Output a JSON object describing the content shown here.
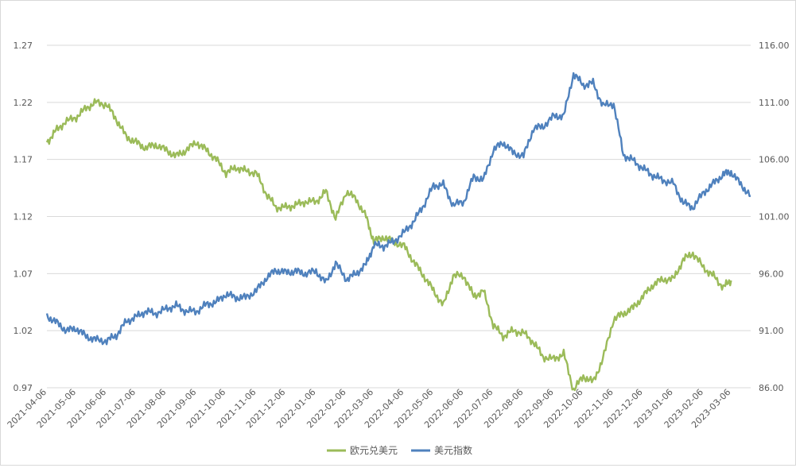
{
  "chart_data": {
    "type": "line",
    "title": "",
    "x_tick_labels": [
      "2021-04-06",
      "2021-05-06",
      "2021-06-06",
      "2021-07-06",
      "2021-08-06",
      "2021-09-06",
      "2021-10-06",
      "2021-11-06",
      "2021-12-06",
      "2022-01-06",
      "2022-02-06",
      "2022-03-06",
      "2022-04-06",
      "2022-05-06",
      "2022-06-06",
      "2022-07-06",
      "2022-08-06",
      "2022-09-06",
      "2022-10-06",
      "2022-11-06",
      "2022-12-06",
      "2023-01-06",
      "2023-02-06",
      "2023-03-06"
    ],
    "left_axis": {
      "min": 0.97,
      "max": 1.27,
      "ticks": [
        "0.97",
        "1.02",
        "1.07",
        "1.12",
        "1.17",
        "1.22",
        "1.27"
      ]
    },
    "right_axis": {
      "min": 86,
      "max": 116,
      "ticks": [
        "86.00",
        "91.00",
        "96.00",
        "101.00",
        "106.00",
        "111.00",
        "116.00"
      ]
    },
    "grid": "horizontal",
    "legend_position": "bottom",
    "series": [
      {
        "name": "欧元兑美元",
        "axis": "left",
        "color": "#9bbb59",
        "points": [
          [
            "2021-04-06",
            1.185
          ],
          [
            "2021-04-15",
            1.195
          ],
          [
            "2021-04-25",
            1.203
          ],
          [
            "2021-05-06",
            1.207
          ],
          [
            "2021-05-16",
            1.215
          ],
          [
            "2021-05-26",
            1.22
          ],
          [
            "2021-06-06",
            1.218
          ],
          [
            "2021-06-16",
            1.205
          ],
          [
            "2021-06-26",
            1.19
          ],
          [
            "2021-07-06",
            1.185
          ],
          [
            "2021-07-16",
            1.18
          ],
          [
            "2021-07-26",
            1.183
          ],
          [
            "2021-08-06",
            1.178
          ],
          [
            "2021-08-16",
            1.173
          ],
          [
            "2021-08-26",
            1.178
          ],
          [
            "2021-09-06",
            1.185
          ],
          [
            "2021-09-16",
            1.178
          ],
          [
            "2021-09-26",
            1.17
          ],
          [
            "2021-10-06",
            1.158
          ],
          [
            "2021-10-16",
            1.163
          ],
          [
            "2021-10-26",
            1.16
          ],
          [
            "2021-11-06",
            1.158
          ],
          [
            "2021-11-16",
            1.14
          ],
          [
            "2021-11-26",
            1.128
          ],
          [
            "2021-12-06",
            1.128
          ],
          [
            "2021-12-16",
            1.13
          ],
          [
            "2021-12-26",
            1.133
          ],
          [
            "2022-01-06",
            1.133
          ],
          [
            "2022-01-16",
            1.142
          ],
          [
            "2022-01-26",
            1.118
          ],
          [
            "2022-02-06",
            1.142
          ],
          [
            "2022-02-16",
            1.135
          ],
          [
            "2022-02-26",
            1.12
          ],
          [
            "2022-03-06",
            1.098
          ],
          [
            "2022-03-16",
            1.102
          ],
          [
            "2022-03-26",
            1.098
          ],
          [
            "2022-04-06",
            1.094
          ],
          [
            "2022-04-16",
            1.08
          ],
          [
            "2022-04-26",
            1.068
          ],
          [
            "2022-05-06",
            1.055
          ],
          [
            "2022-05-16",
            1.042
          ],
          [
            "2022-05-26",
            1.068
          ],
          [
            "2022-06-06",
            1.068
          ],
          [
            "2022-06-16",
            1.05
          ],
          [
            "2022-06-26",
            1.055
          ],
          [
            "2022-07-06",
            1.025
          ],
          [
            "2022-07-16",
            1.015
          ],
          [
            "2022-07-26",
            1.02
          ],
          [
            "2022-08-06",
            1.018
          ],
          [
            "2022-08-16",
            1.01
          ],
          [
            "2022-08-26",
            0.997
          ],
          [
            "2022-09-06",
            0.995
          ],
          [
            "2022-09-16",
            1.0
          ],
          [
            "2022-09-26",
            0.968
          ],
          [
            "2022-10-06",
            0.98
          ],
          [
            "2022-10-16",
            0.975
          ],
          [
            "2022-10-26",
            0.995
          ],
          [
            "2022-11-06",
            1.03
          ],
          [
            "2022-11-16",
            1.035
          ],
          [
            "2022-11-26",
            1.04
          ],
          [
            "2022-12-06",
            1.05
          ],
          [
            "2022-12-16",
            1.06
          ],
          [
            "2022-12-26",
            1.065
          ],
          [
            "2023-01-06",
            1.065
          ],
          [
            "2023-01-16",
            1.082
          ],
          [
            "2023-01-26",
            1.088
          ],
          [
            "2023-02-06",
            1.075
          ],
          [
            "2023-02-16",
            1.068
          ],
          [
            "2023-02-26",
            1.058
          ],
          [
            "2023-03-06",
            1.064
          ]
        ]
      },
      {
        "name": "美元指数",
        "axis": "right",
        "color": "#4f81bd",
        "points": [
          [
            "2021-04-06",
            92.3
          ],
          [
            "2021-04-16",
            91.7
          ],
          [
            "2021-04-26",
            91.0
          ],
          [
            "2021-05-06",
            91.2
          ],
          [
            "2021-05-16",
            90.5
          ],
          [
            "2021-05-26",
            90.2
          ],
          [
            "2021-06-06",
            90.1
          ],
          [
            "2021-06-16",
            90.6
          ],
          [
            "2021-06-26",
            91.8
          ],
          [
            "2021-07-06",
            92.2
          ],
          [
            "2021-07-16",
            92.7
          ],
          [
            "2021-07-26",
            92.5
          ],
          [
            "2021-08-06",
            92.9
          ],
          [
            "2021-08-16",
            93.2
          ],
          [
            "2021-08-26",
            92.7
          ],
          [
            "2021-09-06",
            92.7
          ],
          [
            "2021-09-16",
            93.3
          ],
          [
            "2021-09-26",
            93.5
          ],
          [
            "2021-10-06",
            94.2
          ],
          [
            "2021-10-16",
            93.9
          ],
          [
            "2021-10-26",
            93.9
          ],
          [
            "2021-11-06",
            94.5
          ],
          [
            "2021-11-16",
            95.6
          ],
          [
            "2021-11-26",
            96.3
          ],
          [
            "2021-12-06",
            96.1
          ],
          [
            "2021-12-16",
            96.2
          ],
          [
            "2021-12-26",
            96.0
          ],
          [
            "2022-01-06",
            96.2
          ],
          [
            "2022-01-16",
            95.2
          ],
          [
            "2022-01-26",
            96.9
          ],
          [
            "2022-02-06",
            95.5
          ],
          [
            "2022-02-16",
            96.0
          ],
          [
            "2022-02-26",
            96.8
          ],
          [
            "2022-03-06",
            98.5
          ],
          [
            "2022-03-16",
            98.4
          ],
          [
            "2022-03-26",
            98.8
          ],
          [
            "2022-04-06",
            99.6
          ],
          [
            "2022-04-16",
            100.6
          ],
          [
            "2022-04-26",
            102.0
          ],
          [
            "2022-05-06",
            103.7
          ],
          [
            "2022-05-16",
            103.8
          ],
          [
            "2022-05-26",
            102.0
          ],
          [
            "2022-06-06",
            102.3
          ],
          [
            "2022-06-16",
            104.5
          ],
          [
            "2022-06-26",
            104.2
          ],
          [
            "2022-07-06",
            106.8
          ],
          [
            "2022-07-16",
            107.5
          ],
          [
            "2022-07-26",
            106.6
          ],
          [
            "2022-08-06",
            106.3
          ],
          [
            "2022-08-16",
            108.7
          ],
          [
            "2022-08-26",
            108.9
          ],
          [
            "2022-09-06",
            109.8
          ],
          [
            "2022-09-16",
            109.8
          ],
          [
            "2022-09-26",
            113.5
          ],
          [
            "2022-10-06",
            112.5
          ],
          [
            "2022-10-16",
            112.7
          ],
          [
            "2022-10-26",
            110.7
          ],
          [
            "2022-11-06",
            110.9
          ],
          [
            "2022-11-16",
            106.4
          ],
          [
            "2022-11-26",
            105.9
          ],
          [
            "2022-12-06",
            105.2
          ],
          [
            "2022-12-16",
            104.6
          ],
          [
            "2022-12-26",
            104.2
          ],
          [
            "2023-01-06",
            103.9
          ],
          [
            "2023-01-16",
            102.2
          ],
          [
            "2023-01-26",
            101.8
          ],
          [
            "2023-02-06",
            103.1
          ],
          [
            "2023-02-16",
            103.9
          ],
          [
            "2023-02-26",
            104.7
          ],
          [
            "2023-03-06",
            104.9
          ],
          [
            "2023-03-16",
            103.8
          ],
          [
            "2023-03-26",
            102.8
          ]
        ]
      }
    ]
  }
}
